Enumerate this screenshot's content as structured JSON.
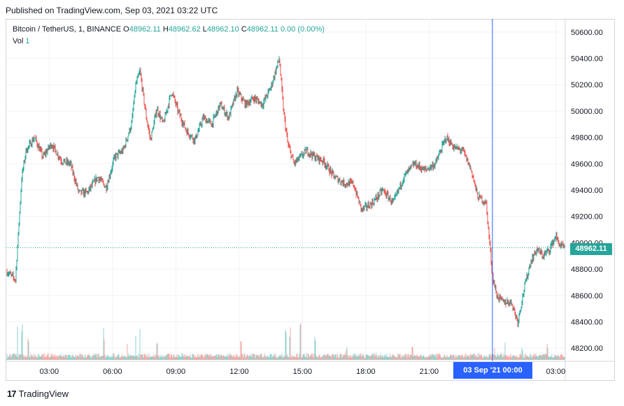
{
  "header": {
    "published": "Published on TradingView.com, Sep 03, 2021 03:22 UTC"
  },
  "legend": {
    "symbol": "Bitcoin / TetherUS, 1, BINANCE",
    "o_label": "O",
    "o_value": "48962.11",
    "h_label": "H",
    "h_value": "48962.62",
    "l_label": "L",
    "l_value": "48962.10",
    "c_label": "C",
    "c_value": "48962.11",
    "change": "0.00 (0.00%)",
    "vol_label": "Vol",
    "vol_value": "1"
  },
  "price_tag": "48962.11",
  "time_tag": "03 Sep '21   00:00",
  "brand": {
    "logo": "17",
    "name": "TradingView"
  },
  "colors": {
    "up": "#26a69a",
    "down": "#ef5350",
    "crosshair": "#2962ff",
    "price_line": "#26a69a"
  },
  "chart_data": {
    "type": "candlestick",
    "symbol": "BTCUSDT",
    "interval": "1 minute",
    "ylim": [
      48100,
      50700
    ],
    "y_ticks": [
      48200,
      48400,
      48600,
      48800,
      49000,
      49200,
      49400,
      49600,
      49800,
      50000,
      50200,
      50400,
      50600
    ],
    "y_tick_labels": [
      "48200.00",
      "48400.00",
      "48600.00",
      "48800.00",
      "49000.00",
      "49200.00",
      "49400.00",
      "49600.00",
      "49800.00",
      "50000.00",
      "50200.00",
      "50400.00",
      "50600.00"
    ],
    "x_ticks": [
      "03:00",
      "06:00",
      "09:00",
      "12:00",
      "15:00",
      "18:00",
      "21:00",
      "03:00"
    ],
    "x_tick_hours": [
      3,
      6,
      9,
      12,
      15,
      18,
      21,
      27
    ],
    "x_range_hours": [
      1.0,
      27.45
    ],
    "crosshair_hour": 24,
    "last_price": 48962.11,
    "close_path": {
      "hour": [
        1.0,
        1.4,
        1.7,
        1.9,
        2.3,
        2.7,
        3.1,
        3.6,
        4.0,
        4.4,
        4.8,
        5.3,
        5.7,
        6.1,
        6.5,
        6.9,
        7.1,
        7.3,
        7.6,
        7.8,
        8.1,
        8.4,
        8.8,
        9.1,
        9.5,
        9.9,
        10.3,
        10.7,
        11.1,
        11.5,
        11.9,
        12.3,
        12.7,
        13.1,
        13.5,
        13.9,
        14.1,
        14.3,
        14.6,
        14.9,
        15.2,
        15.6,
        16.0,
        16.5,
        17.0,
        17.4,
        17.8,
        18.3,
        18.8,
        19.3,
        19.8,
        20.3,
        20.8,
        21.3,
        21.8,
        22.2,
        22.6,
        23.0,
        23.3,
        23.5,
        23.7,
        24.0,
        24.2,
        24.5,
        24.9,
        25.2,
        25.5,
        25.8,
        26.1,
        26.4,
        26.7,
        27.0,
        27.2,
        27.4
      ],
      "price": [
        48780,
        48720,
        49500,
        49700,
        49800,
        49650,
        49750,
        49620,
        49600,
        49380,
        49380,
        49500,
        49420,
        49650,
        49700,
        49900,
        50200,
        50300,
        49950,
        49780,
        50020,
        49900,
        50150,
        50000,
        49850,
        49780,
        49950,
        49900,
        50050,
        49950,
        50150,
        50050,
        50100,
        50050,
        50180,
        50400,
        50000,
        49750,
        49600,
        49650,
        49700,
        49650,
        49620,
        49500,
        49450,
        49450,
        49250,
        49300,
        49400,
        49300,
        49500,
        49600,
        49550,
        49600,
        49800,
        49720,
        49700,
        49550,
        49350,
        49330,
        49300,
        48750,
        48600,
        48550,
        48550,
        48400,
        48650,
        48850,
        48950,
        48900,
        48950,
        49050,
        48980,
        48962
      ]
    },
    "volume": {
      "hour": [
        1.5,
        1.7,
        2.0,
        5.6,
        6.7,
        7.1,
        7.3,
        8.1,
        12.1,
        14.2,
        14.4,
        14.9,
        15.6,
        17.1,
        20.2,
        24.1,
        24.6,
        25.4,
        26.6
      ],
      "relative": [
        0.6,
        0.7,
        0.4,
        0.5,
        0.3,
        0.55,
        0.65,
        0.3,
        0.3,
        0.6,
        0.55,
        0.6,
        0.35,
        0.2,
        0.2,
        0.25,
        0.3,
        0.2,
        0.25
      ]
    }
  }
}
